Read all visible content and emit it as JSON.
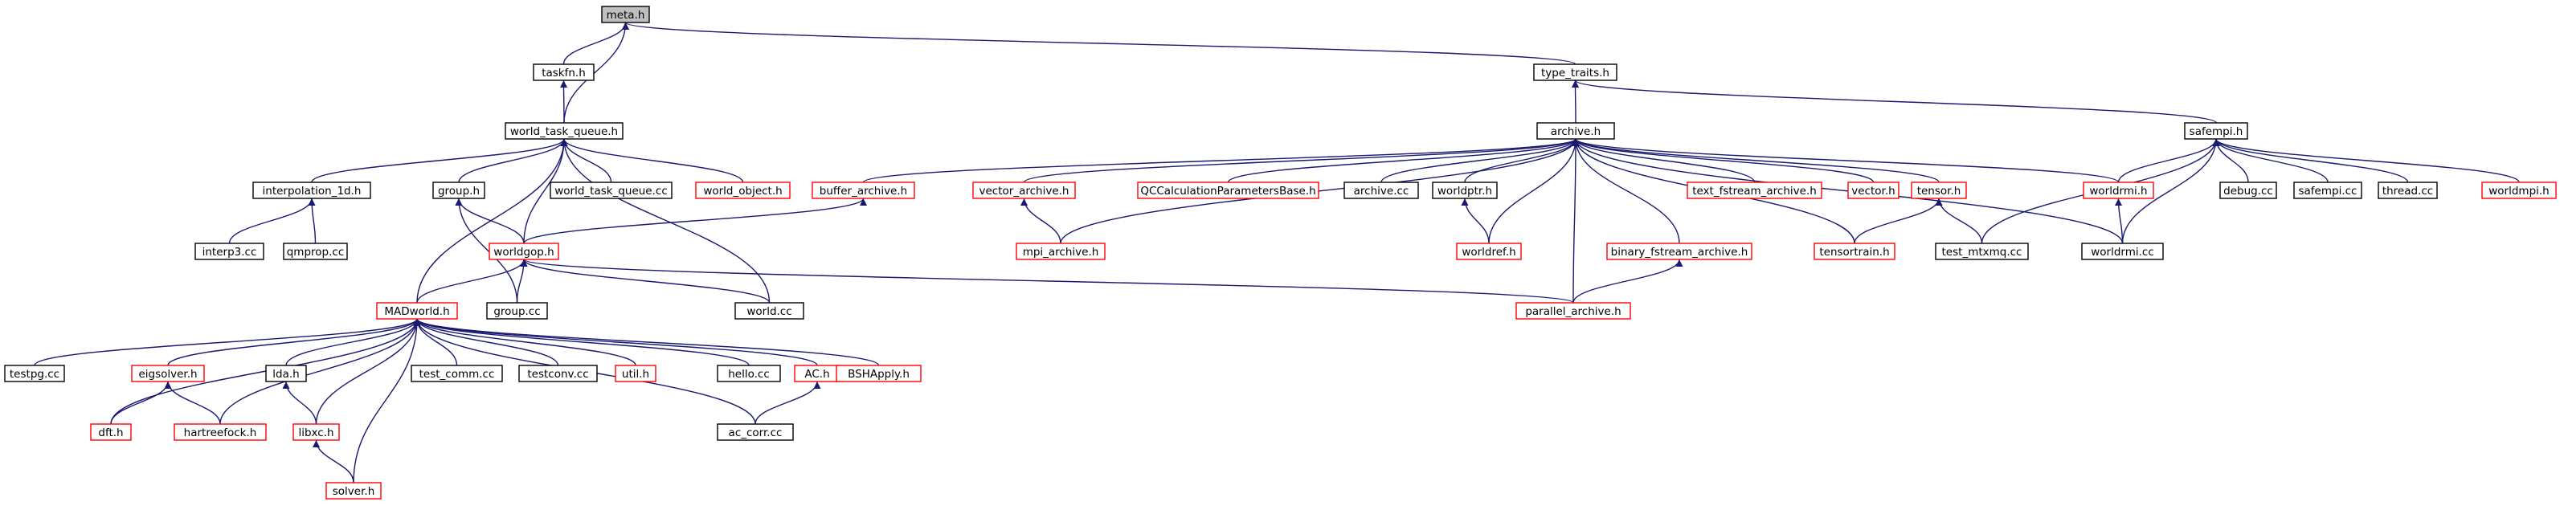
{
  "colors": {
    "edge": "#191970",
    "linked_border": "#000000",
    "unlinked_border": "#ff0000",
    "root_fill": "#bfbfbf",
    "background": "#ffffff"
  },
  "nodes": [
    {
      "id": "meta",
      "label": "meta.h",
      "style": "root"
    },
    {
      "id": "taskfn",
      "label": "taskfn.h",
      "style": "black"
    },
    {
      "id": "type_traits",
      "label": "type_traits.h",
      "style": "black"
    },
    {
      "id": "wtq",
      "label": "world_task_queue.h",
      "style": "black"
    },
    {
      "id": "archive",
      "label": "archive.h",
      "style": "black"
    },
    {
      "id": "safempi",
      "label": "safempi.h",
      "style": "black"
    },
    {
      "id": "interp1d",
      "label": "interpolation_1d.h",
      "style": "black"
    },
    {
      "id": "grouph",
      "label": "group.h",
      "style": "black"
    },
    {
      "id": "wtqcc",
      "label": "world_task_queue.cc",
      "style": "black"
    },
    {
      "id": "worldobject",
      "label": "world_object.h",
      "style": "red"
    },
    {
      "id": "bufferarch",
      "label": "buffer_archive.h",
      "style": "red"
    },
    {
      "id": "vectorarch",
      "label": "vector_archive.h",
      "style": "red"
    },
    {
      "id": "qccalc",
      "label": "QCCalculationParametersBase.h",
      "style": "red"
    },
    {
      "id": "archivecc",
      "label": "archive.cc",
      "style": "black"
    },
    {
      "id": "worldptr",
      "label": "worldptr.h",
      "style": "black"
    },
    {
      "id": "textfs",
      "label": "text_fstream_archive.h",
      "style": "red"
    },
    {
      "id": "vectorh",
      "label": "vector.h",
      "style": "red"
    },
    {
      "id": "tensorh",
      "label": "tensor.h",
      "style": "red"
    },
    {
      "id": "worldrmih",
      "label": "worldrmi.h",
      "style": "red"
    },
    {
      "id": "debugcc",
      "label": "debug.cc",
      "style": "black"
    },
    {
      "id": "safempicc",
      "label": "safempi.cc",
      "style": "black"
    },
    {
      "id": "threadcc",
      "label": "thread.cc",
      "style": "black"
    },
    {
      "id": "worldmpi",
      "label": "worldmpi.h",
      "style": "red"
    },
    {
      "id": "interp3",
      "label": "interp3.cc",
      "style": "black"
    },
    {
      "id": "qmprop",
      "label": "qmprop.cc",
      "style": "black"
    },
    {
      "id": "worldgop",
      "label": "worldgop.h",
      "style": "red"
    },
    {
      "id": "mpiarch",
      "label": "mpi_archive.h",
      "style": "red"
    },
    {
      "id": "worldref",
      "label": "worldref.h",
      "style": "red"
    },
    {
      "id": "binaryfs",
      "label": "binary_fstream_archive.h",
      "style": "red"
    },
    {
      "id": "tensortrain",
      "label": "tensortrain.h",
      "style": "red"
    },
    {
      "id": "testmtx",
      "label": "test_mtxmq.cc",
      "style": "black"
    },
    {
      "id": "worldrmicc",
      "label": "worldrmi.cc",
      "style": "black"
    },
    {
      "id": "madworld",
      "label": "MADworld.h",
      "style": "red"
    },
    {
      "id": "groupcc",
      "label": "group.cc",
      "style": "black"
    },
    {
      "id": "worldcc",
      "label": "world.cc",
      "style": "black"
    },
    {
      "id": "parallelarch",
      "label": "parallel_archive.h",
      "style": "red"
    },
    {
      "id": "testpg",
      "label": "testpg.cc",
      "style": "black"
    },
    {
      "id": "eigsolver",
      "label": "eigsolver.h",
      "style": "red"
    },
    {
      "id": "lda",
      "label": "lda.h",
      "style": "black"
    },
    {
      "id": "testcomm",
      "label": "test_comm.cc",
      "style": "black"
    },
    {
      "id": "testconv",
      "label": "testconv.cc",
      "style": "black"
    },
    {
      "id": "util",
      "label": "util.h",
      "style": "red"
    },
    {
      "id": "hello",
      "label": "hello.cc",
      "style": "black"
    },
    {
      "id": "ac",
      "label": "AC.h",
      "style": "red"
    },
    {
      "id": "bshapply",
      "label": "BSHApply.h",
      "style": "red"
    },
    {
      "id": "dft",
      "label": "dft.h",
      "style": "red"
    },
    {
      "id": "hartree",
      "label": "hartreefock.h",
      "style": "red"
    },
    {
      "id": "libxc",
      "label": "libxc.h",
      "style": "red"
    },
    {
      "id": "accorr",
      "label": "ac_corr.cc",
      "style": "black"
    },
    {
      "id": "solver",
      "label": "solver.h",
      "style": "red"
    }
  ],
  "edges": [
    [
      "taskfn",
      "meta"
    ],
    [
      "wtq",
      "meta"
    ],
    [
      "type_traits",
      "meta"
    ],
    [
      "wtq",
      "taskfn"
    ],
    [
      "archive",
      "type_traits"
    ],
    [
      "safempi",
      "type_traits"
    ],
    [
      "interp1d",
      "wtq"
    ],
    [
      "grouph",
      "wtq"
    ],
    [
      "wtqcc",
      "wtq"
    ],
    [
      "worldobject",
      "wtq"
    ],
    [
      "worldgop",
      "wtq"
    ],
    [
      "madworld",
      "wtq"
    ],
    [
      "worldcc",
      "wtq"
    ],
    [
      "bufferarch",
      "archive"
    ],
    [
      "vectorarch",
      "archive"
    ],
    [
      "qccalc",
      "archive"
    ],
    [
      "archivecc",
      "archive"
    ],
    [
      "worldptr",
      "archive"
    ],
    [
      "textfs",
      "archive"
    ],
    [
      "vectorh",
      "archive"
    ],
    [
      "tensorh",
      "archive"
    ],
    [
      "worldrmih",
      "archive"
    ],
    [
      "mpiarch",
      "archive"
    ],
    [
      "worldref",
      "archive"
    ],
    [
      "binaryfs",
      "archive"
    ],
    [
      "tensortrain",
      "archive"
    ],
    [
      "worldrmicc",
      "archive"
    ],
    [
      "parallelarch",
      "archive"
    ],
    [
      "worldrmih",
      "safempi"
    ],
    [
      "debugcc",
      "safempi"
    ],
    [
      "safempicc",
      "safempi"
    ],
    [
      "threadcc",
      "safempi"
    ],
    [
      "worldmpi",
      "safempi"
    ],
    [
      "testmtx",
      "safempi"
    ],
    [
      "worldrmicc",
      "safempi"
    ],
    [
      "interp3",
      "interp1d"
    ],
    [
      "qmprop",
      "interp1d"
    ],
    [
      "worldgop",
      "grouph"
    ],
    [
      "groupcc",
      "grouph"
    ],
    [
      "worldgop",
      "bufferarch"
    ],
    [
      "mpiarch",
      "vectorarch"
    ],
    [
      "worldref",
      "worldptr"
    ],
    [
      "tensortrain",
      "tensorh"
    ],
    [
      "testmtx",
      "tensorh"
    ],
    [
      "worldrmicc",
      "worldrmih"
    ],
    [
      "madworld",
      "worldgop"
    ],
    [
      "groupcc",
      "worldgop"
    ],
    [
      "worldcc",
      "worldgop"
    ],
    [
      "parallelarch",
      "worldgop"
    ],
    [
      "parallelarch",
      "binaryfs"
    ],
    [
      "testpg",
      "madworld"
    ],
    [
      "eigsolver",
      "madworld"
    ],
    [
      "lda",
      "madworld"
    ],
    [
      "testcomm",
      "madworld"
    ],
    [
      "testconv",
      "madworld"
    ],
    [
      "util",
      "madworld"
    ],
    [
      "hello",
      "madworld"
    ],
    [
      "ac",
      "madworld"
    ],
    [
      "bshapply",
      "madworld"
    ],
    [
      "dft",
      "madworld"
    ],
    [
      "hartree",
      "madworld"
    ],
    [
      "libxc",
      "madworld"
    ],
    [
      "accorr",
      "madworld"
    ],
    [
      "solver",
      "madworld"
    ],
    [
      "dft",
      "eigsolver"
    ],
    [
      "hartree",
      "eigsolver"
    ],
    [
      "libxc",
      "lda"
    ],
    [
      "solver",
      "libxc"
    ],
    [
      "accorr",
      "ac"
    ]
  ]
}
